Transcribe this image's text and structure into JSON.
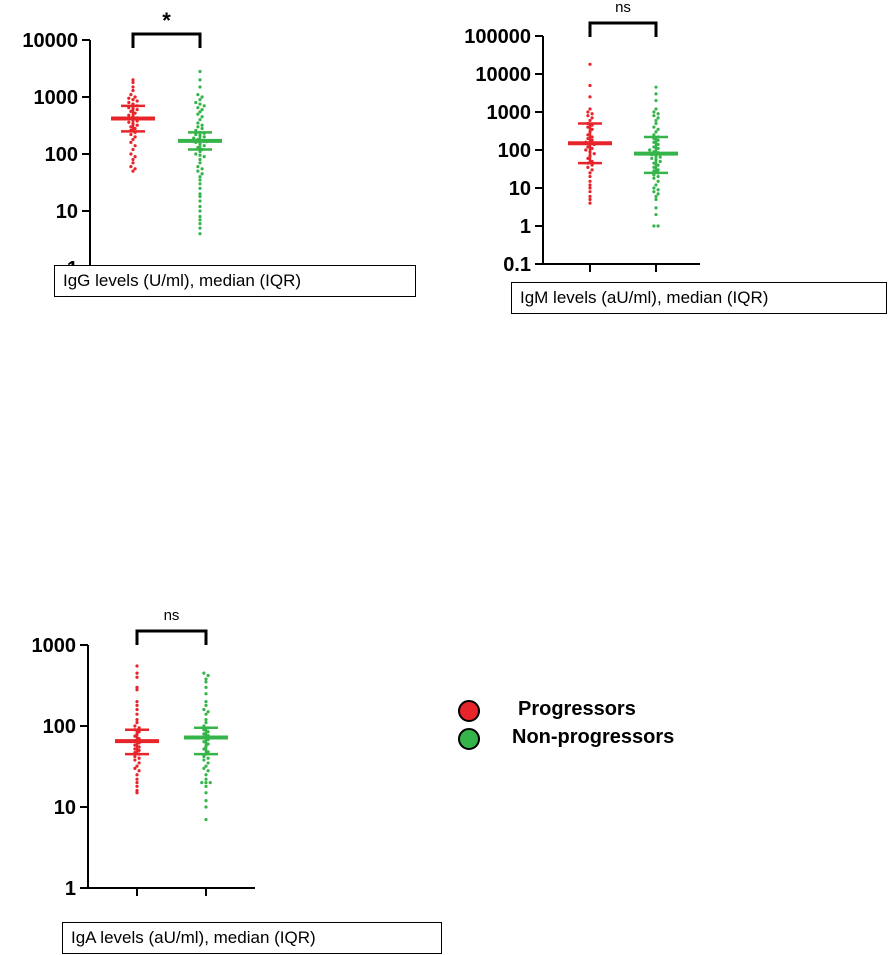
{
  "colors": {
    "progressors": "#e8242b",
    "non_progressors": "#35b44a",
    "axis": "#000000"
  },
  "legend": {
    "items": [
      {
        "label": "Progressors",
        "color": "#e8242b"
      },
      {
        "label": "Non-progressors",
        "color": "#35b44a"
      }
    ]
  },
  "chart_data": [
    {
      "type": "scatter",
      "id": "igg",
      "xlabel": "IgG levels (U/ml), median  (IQR)",
      "yscale": "log",
      "ylim": [
        1,
        10000
      ],
      "yticks": [
        1,
        10,
        100,
        1000,
        10000
      ],
      "ytick_labels": [
        "1",
        "10",
        "100",
        "1000",
        "10000"
      ],
      "significance": "*",
      "series": [
        {
          "group": "progressors",
          "median": 420,
          "q1": 250,
          "q3": 700,
          "values": [
            2000,
            1800,
            1500,
            1300,
            1100,
            1000,
            950,
            900,
            850,
            800,
            750,
            700,
            650,
            620,
            600,
            560,
            520,
            480,
            450,
            430,
            410,
            400,
            380,
            360,
            340,
            320,
            300,
            280,
            260,
            240,
            220,
            200,
            180,
            160,
            140,
            120,
            100,
            90,
            80,
            70,
            60,
            55,
            50
          ]
        },
        {
          "group": "non_progressors",
          "median": 170,
          "q1": 120,
          "q3": 240,
          "values": [
            2800,
            2000,
            1500,
            1100,
            1000,
            900,
            800,
            750,
            700,
            650,
            600,
            550,
            500,
            450,
            400,
            350,
            320,
            300,
            280,
            260,
            240,
            230,
            220,
            210,
            200,
            190,
            180,
            170,
            165,
            160,
            150,
            140,
            130,
            120,
            110,
            100,
            95,
            90,
            80,
            70,
            60,
            55,
            50,
            45,
            40,
            35,
            30,
            25,
            20,
            18,
            15,
            12,
            10,
            8,
            7,
            6,
            5,
            4
          ]
        }
      ]
    },
    {
      "type": "scatter",
      "id": "igm",
      "xlabel": "IgM levels (aU/ml), median  (IQR)",
      "yscale": "log",
      "ylim": [
        0.1,
        100000
      ],
      "yticks": [
        0.1,
        1,
        10,
        100,
        1000,
        10000,
        100000
      ],
      "ytick_labels": [
        "0.1",
        "1",
        "10",
        "100",
        "1000",
        "10000",
        "100000"
      ],
      "significance": "ns",
      "series": [
        {
          "group": "progressors",
          "median": 150,
          "q1": 45,
          "q3": 500,
          "values": [
            18000,
            5000,
            2500,
            1200,
            1000,
            900,
            800,
            700,
            600,
            500,
            450,
            400,
            350,
            300,
            250,
            220,
            200,
            180,
            160,
            150,
            140,
            120,
            110,
            100,
            90,
            80,
            70,
            60,
            50,
            45,
            40,
            35,
            30,
            25,
            20,
            15,
            12,
            10,
            8,
            6,
            5,
            4
          ]
        },
        {
          "group": "non_progressors",
          "median": 80,
          "q1": 25,
          "q3": 220,
          "values": [
            4500,
            3000,
            2000,
            1200,
            1000,
            900,
            800,
            700,
            600,
            500,
            400,
            350,
            300,
            250,
            220,
            200,
            180,
            160,
            140,
            120,
            110,
            100,
            90,
            85,
            80,
            75,
            70,
            65,
            60,
            55,
            50,
            45,
            40,
            35,
            30,
            28,
            25,
            22,
            20,
            18,
            15,
            12,
            10,
            9,
            8,
            7,
            6,
            5,
            3,
            2,
            1,
            1
          ]
        }
      ]
    },
    {
      "type": "scatter",
      "id": "iga",
      "xlabel": "IgA levels (aU/ml), median  (IQR)",
      "yscale": "log",
      "ylim": [
        1,
        1000
      ],
      "yticks": [
        1,
        10,
        100,
        1000
      ],
      "ytick_labels": [
        "1",
        "10",
        "100",
        "1000"
      ],
      "significance": "ns",
      "series": [
        {
          "group": "progressors",
          "median": 65,
          "q1": 45,
          "q3": 90,
          "values": [
            550,
            450,
            400,
            300,
            280,
            200,
            180,
            160,
            140,
            120,
            110,
            100,
            95,
            90,
            85,
            80,
            75,
            70,
            66,
            62,
            58,
            55,
            52,
            50,
            47,
            45,
            42,
            40,
            38,
            35,
            32,
            30,
            28,
            25,
            22,
            20,
            18,
            16,
            15
          ]
        },
        {
          "group": "non_progressors",
          "median": 72,
          "q1": 45,
          "q3": 95,
          "values": [
            450,
            420,
            380,
            350,
            300,
            250,
            200,
            180,
            160,
            150,
            140,
            120,
            110,
            100,
            95,
            90,
            85,
            80,
            76,
            72,
            68,
            64,
            60,
            56,
            52,
            48,
            45,
            42,
            40,
            38,
            35,
            32,
            30,
            28,
            25,
            22,
            20,
            20,
            20,
            18,
            15,
            12,
            10,
            7
          ]
        }
      ]
    }
  ]
}
